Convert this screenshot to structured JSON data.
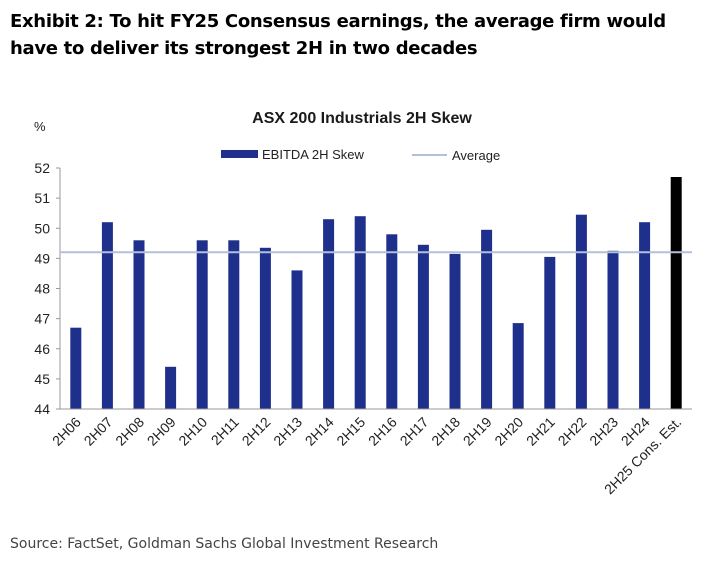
{
  "exhibit_title": "Exhibit 2: To hit FY25 Consensus earnings, the average firm would have to deliver its strongest 2H in two decades",
  "source": "Source: FactSet, Goldman Sachs Global Investment Research",
  "chart_data": {
    "type": "bar",
    "title": "ASX 200 Industrials 2H Skew",
    "ylabel": "%",
    "xlabel": "",
    "ylim": [
      44,
      52
    ],
    "yticks": [
      44,
      45,
      46,
      47,
      48,
      49,
      50,
      51,
      52
    ],
    "grid": false,
    "legend_position": "top",
    "categories": [
      "2H06",
      "2H07",
      "2H08",
      "2H09",
      "2H10",
      "2H11",
      "2H12",
      "2H13",
      "2H14",
      "2H15",
      "2H16",
      "2H17",
      "2H18",
      "2H19",
      "2H20",
      "2H21",
      "2H22",
      "2H23",
      "2H24",
      "2H25 Cons. Est."
    ],
    "series": [
      {
        "name": "EBITDA 2H Skew",
        "color": "#1f2f8c",
        "values": [
          46.7,
          50.2,
          49.6,
          45.4,
          49.6,
          49.6,
          49.35,
          48.6,
          50.3,
          50.4,
          49.8,
          49.45,
          49.15,
          49.95,
          46.85,
          49.05,
          50.45,
          49.25,
          50.2,
          51.7
        ],
        "highlight_index": 19,
        "highlight_color": "#000000"
      }
    ],
    "average": {
      "name": "Average",
      "value": 49.2,
      "color": "#b4bfd9"
    }
  }
}
